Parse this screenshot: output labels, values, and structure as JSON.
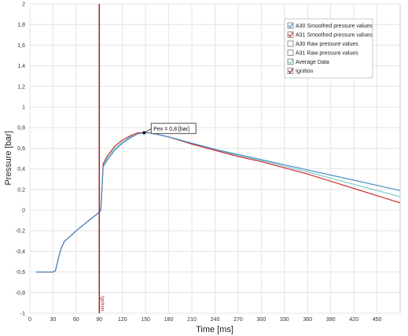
{
  "chart_data": {
    "type": "line",
    "xlabel": "Time [ms]",
    "ylabel": "Pressure [bar]",
    "xlim": [
      0,
      480
    ],
    "ylim": [
      -1,
      2
    ],
    "grid": true,
    "legend_position": "top-right",
    "x_ticks": [
      "0",
      "30",
      "60",
      "90",
      "120",
      "150",
      "180",
      "210",
      "240",
      "270",
      "300",
      "330",
      "360",
      "390",
      "420",
      "450"
    ],
    "y_ticks": [
      "-1",
      "-0,8",
      "-0,6",
      "-0,4",
      "-0,2",
      "0",
      "0,2",
      "0,4",
      "0,6",
      "0,8",
      "1",
      "1,2",
      "1,4",
      "1,6",
      "1,8",
      "2"
    ],
    "x_tick_values": [
      0,
      30,
      60,
      90,
      120,
      150,
      180,
      210,
      240,
      270,
      300,
      330,
      360,
      390,
      420,
      450
    ],
    "y_tick_values": [
      -1,
      -0.8,
      -0.6,
      -0.4,
      -0.2,
      0,
      0.2,
      0.4,
      0.6,
      0.8,
      1,
      1.2,
      1.4,
      1.6,
      1.8,
      2
    ],
    "series": [
      {
        "name": "A30 Smoothed pressure values",
        "color": "#4a90c8",
        "checked": true,
        "x": [
          8,
          30,
          33,
          36,
          40,
          45,
          50,
          60,
          70,
          80,
          90,
          92,
          95,
          100,
          110,
          120,
          130,
          140,
          148,
          155,
          180,
          210,
          240,
          270,
          300,
          330,
          360,
          390,
          420,
          450,
          480
        ],
        "y": [
          -0.6,
          -0.6,
          -0.59,
          -0.5,
          -0.38,
          -0.3,
          -0.27,
          -0.2,
          -0.14,
          -0.08,
          -0.02,
          0.0,
          0.42,
          0.48,
          0.58,
          0.65,
          0.7,
          0.74,
          0.75,
          0.75,
          0.71,
          0.65,
          0.59,
          0.54,
          0.49,
          0.44,
          0.39,
          0.34,
          0.29,
          0.24,
          0.19
        ]
      },
      {
        "name": "A31 Smoothed pressure values",
        "color": "#d03030",
        "checked": true,
        "x": [
          8,
          30,
          33,
          36,
          40,
          45,
          50,
          60,
          70,
          80,
          90,
          92,
          95,
          100,
          110,
          120,
          130,
          140,
          148,
          155,
          180,
          210,
          240,
          270,
          300,
          330,
          360,
          390,
          420,
          450,
          480
        ],
        "y": [
          -0.6,
          -0.6,
          -0.59,
          -0.5,
          -0.38,
          -0.3,
          -0.27,
          -0.2,
          -0.14,
          -0.08,
          -0.02,
          0.0,
          0.45,
          0.52,
          0.62,
          0.68,
          0.72,
          0.75,
          0.75,
          0.75,
          0.71,
          0.64,
          0.58,
          0.52,
          0.47,
          0.41,
          0.35,
          0.28,
          0.21,
          0.14,
          0.07
        ]
      },
      {
        "name": "A30 Raw pressure values",
        "color": "#8ab4d8",
        "checked": false
      },
      {
        "name": "A31 Raw pressure values",
        "color": "#d88a8a",
        "checked": false
      },
      {
        "name": "Average Data",
        "color": "#7ec8c8",
        "checked": true,
        "x": [
          8,
          30,
          33,
          36,
          40,
          45,
          50,
          60,
          70,
          80,
          90,
          92,
          95,
          100,
          110,
          120,
          130,
          140,
          148,
          155,
          180,
          210,
          240,
          270,
          300,
          330,
          360,
          390,
          420,
          450,
          480
        ],
        "y": [
          -0.6,
          -0.6,
          -0.59,
          -0.5,
          -0.38,
          -0.3,
          -0.27,
          -0.2,
          -0.14,
          -0.08,
          -0.02,
          0.0,
          0.43,
          0.5,
          0.6,
          0.66,
          0.71,
          0.74,
          0.75,
          0.75,
          0.71,
          0.645,
          0.585,
          0.53,
          0.48,
          0.425,
          0.37,
          0.31,
          0.25,
          0.19,
          0.13
        ]
      },
      {
        "name": "Ignition",
        "color": "#a82020",
        "checked": true,
        "vline_x": 90,
        "marker_label": "Ignition"
      }
    ],
    "annotation": {
      "text": "Pex = 0,8 [bar]",
      "x": 148,
      "y": 0.75
    }
  }
}
